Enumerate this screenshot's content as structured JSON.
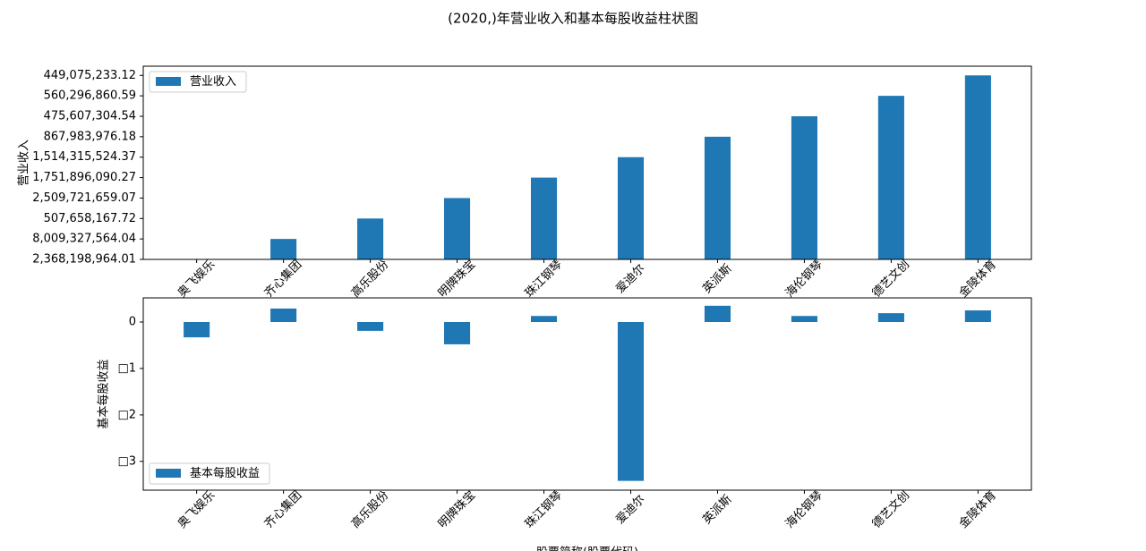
{
  "chart_data": [
    {
      "type": "bar",
      "title": "(2020,)年营业收入和基本每股收益柱状图",
      "ylabel": "营业收入",
      "categories": [
        "奥飞娱乐",
        "齐心集团",
        "高乐股份",
        "明牌珠宝",
        "珠江钢琴",
        "爱迪尔",
        "英派斯",
        "海伦钢琴",
        "德艺文创",
        "金陵体育"
      ],
      "series": [
        {
          "name": "营业收入",
          "color": "#1f77b4",
          "values": [
            0,
            1,
            2,
            3,
            4,
            5,
            6,
            7,
            8,
            9
          ]
        }
      ],
      "ylim": [
        0,
        9.45
      ],
      "yticks": [
        {
          "value": 0,
          "label": "2,368,198,964.01"
        },
        {
          "value": 1,
          "label": "8,009,327,564.04"
        },
        {
          "value": 2,
          "label": "507,658,167.72"
        },
        {
          "value": 3,
          "label": "2,509,721,659.07"
        },
        {
          "value": 4,
          "label": "1,751,896,090.27"
        },
        {
          "value": 5,
          "label": "1,514,315,524.37"
        },
        {
          "value": 6,
          "label": "867,983,976.18"
        },
        {
          "value": 7,
          "label": "475,607,304.54"
        },
        {
          "value": 8,
          "label": "560,296,860.59"
        },
        {
          "value": 9,
          "label": "449,075,233.12"
        }
      ],
      "legend": "upper left"
    },
    {
      "type": "bar",
      "ylabel": "基本每股收益",
      "xlabel": "股票简称(股票代码)",
      "categories": [
        "奥飞娱乐",
        "齐心集团",
        "高乐股份",
        "明牌珠宝",
        "珠江钢琴",
        "爱迪尔",
        "英派斯",
        "海伦钢琴",
        "德艺文创",
        "金陵体育"
      ],
      "series": [
        {
          "name": "基本每股收益",
          "color": "#1f77b4",
          "values": [
            -0.33,
            0.29,
            -0.19,
            -0.48,
            0.13,
            -3.42,
            0.35,
            0.13,
            0.19,
            0.25
          ]
        }
      ],
      "ylim": [
        -3.62,
        0.52
      ],
      "yticks": [
        0,
        {
          "value": -1,
          "label": "□1"
        },
        {
          "value": -2,
          "label": "□2"
        },
        {
          "value": -3,
          "label": "□3"
        }
      ],
      "legend": "lower left"
    }
  ]
}
